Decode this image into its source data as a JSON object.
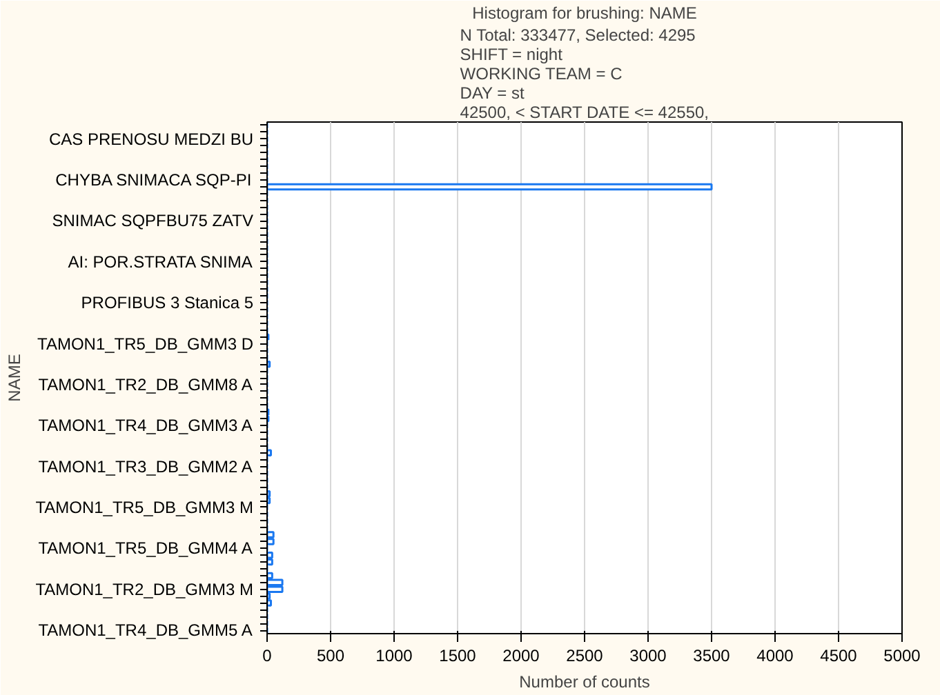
{
  "chart_data": {
    "type": "bar",
    "orientation": "horizontal",
    "title": "Histogram for brushing: NAME",
    "subtitle": "N Total: 333477, Selected: 4295\nSHIFT    = night\nWORKING TEAM = C\nDAY       = st\n42500, < START DATE <= 42550,",
    "xlabel": "Number of counts",
    "ylabel": "NAME",
    "categories": [
      null,
      null,
      "CAS PRENOSU MEDZI BU",
      null,
      null,
      null,
      null,
      null,
      "CHYBA SNIMACA SQP-PI",
      null,
      null,
      null,
      null,
      null,
      "SNIMAC SQPFBU75 ZATV",
      null,
      null,
      null,
      null,
      null,
      "AI: POR.STRATA SNIMA",
      null,
      null,
      null,
      null,
      null,
      "PROFIBUS 3 Stanica 5",
      null,
      null,
      null,
      null,
      null,
      "TAMON1_TR5_DB_GMM3 D",
      null,
      null,
      null,
      null,
      null,
      "TAMON1_TR2_DB_GMM8 A",
      null,
      null,
      null,
      null,
      null,
      "TAMON1_TR4_DB_GMM3 A",
      null,
      null,
      null,
      null,
      null,
      "TAMON1_TR3_DB_GMM2 A",
      null,
      null,
      null,
      null,
      null,
      "TAMON1_TR5_DB_GMM3 M",
      null,
      null,
      null,
      null,
      null,
      "TAMON1_TR5_DB_GMM4 A",
      null,
      null,
      null,
      null,
      null,
      "TAMON1_TR2_DB_GMM3 M",
      null,
      null,
      null,
      null,
      null,
      "TAMON1_TR4_DB_GMM5 A"
    ],
    "values": [
      0,
      0,
      0,
      0,
      0,
      0,
      0,
      0,
      0,
      3500,
      0,
      0,
      0,
      0,
      0,
      0,
      0,
      0,
      0,
      0,
      0,
      0,
      0,
      0,
      0,
      0,
      0,
      0,
      0,
      0,
      0,
      10,
      0,
      0,
      0,
      20,
      0,
      0,
      0,
      0,
      0,
      0,
      10,
      10,
      0,
      0,
      0,
      0,
      30,
      0,
      0,
      0,
      0,
      0,
      20,
      20,
      0,
      0,
      0,
      0,
      50,
      50,
      0,
      40,
      40,
      0,
      40,
      120,
      120,
      20,
      30,
      0,
      0,
      0,
      0
    ],
    "color": "#1a78f0",
    "xlim": [
      0,
      5000
    ],
    "xticks": [
      0,
      500,
      1000,
      1500,
      2000,
      2500,
      3000,
      3500,
      4000,
      4500,
      5000
    ],
    "grid": "x"
  }
}
